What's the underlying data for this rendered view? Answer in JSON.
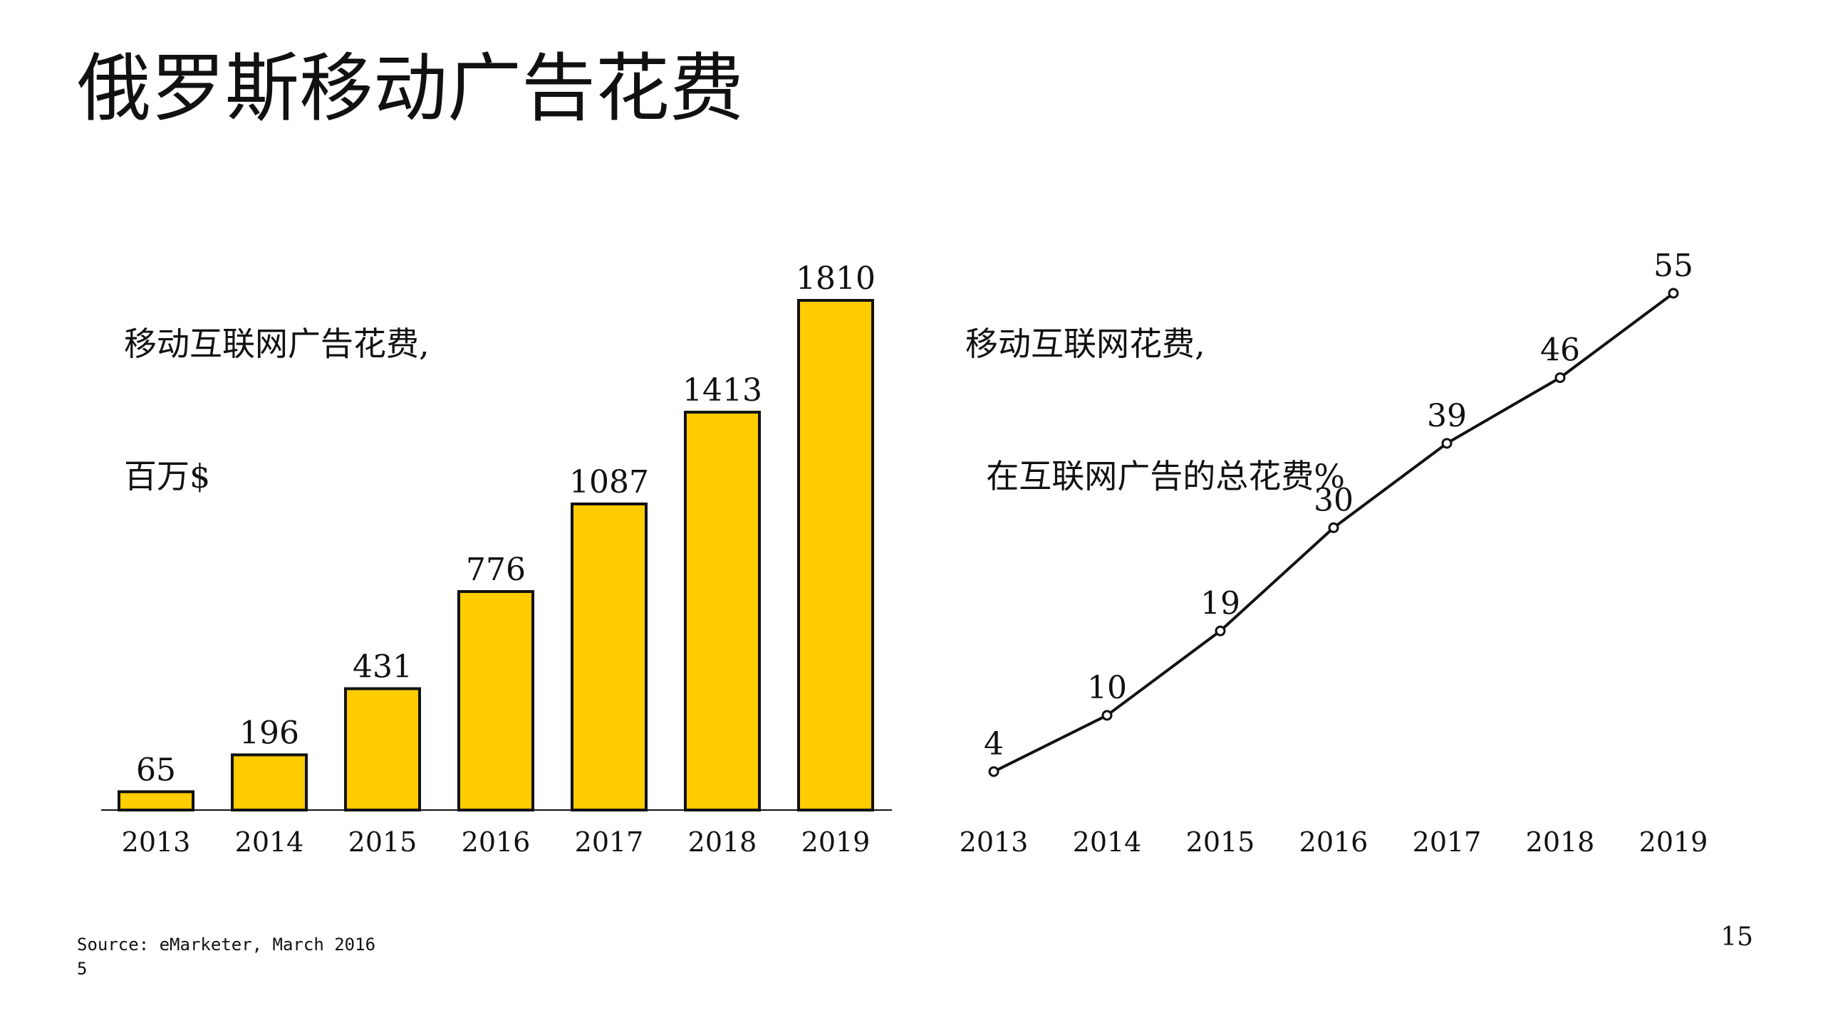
{
  "page": {
    "title": "俄罗斯移动广告花费",
    "source_line1": "Source: eMarketer, March 2016",
    "source_line2": "5",
    "page_number": "15"
  },
  "colors": {
    "bar_fill": "#FFCC00",
    "stroke": "#111111",
    "background": "#FFFFFF"
  },
  "chart_data": [
    {
      "type": "bar",
      "label_lines": [
        "移动互联网广告花费,",
        "百万$"
      ],
      "categories": [
        "2013",
        "2014",
        "2015",
        "2016",
        "2017",
        "2018",
        "2019"
      ],
      "values": [
        65,
        196,
        431,
        776,
        1087,
        1413,
        1810
      ],
      "data_labels": [
        "65",
        "196",
        "431",
        "776",
        "1087",
        "1413",
        "1810"
      ],
      "ylim": [
        0,
        1810
      ],
      "grid": false,
      "legend": "none"
    },
    {
      "type": "line",
      "label_lines": [
        "移动互联网花费,",
        "  在互联网广告的总花费%"
      ],
      "categories": [
        "2013",
        "2014",
        "2015",
        "2016",
        "2017",
        "2018",
        "2019"
      ],
      "values": [
        4,
        10,
        19,
        30,
        39,
        46,
        55
      ],
      "data_labels": [
        "4",
        "10",
        "19",
        "30",
        "39",
        "46",
        "55"
      ],
      "ylim": [
        4,
        55
      ],
      "grid": false,
      "legend": "none"
    }
  ]
}
